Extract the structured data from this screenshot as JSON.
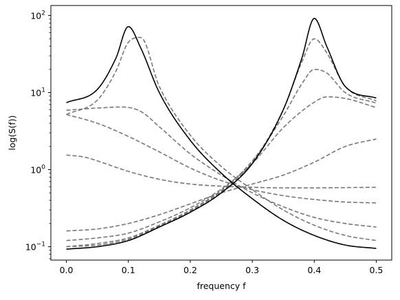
{
  "chart_data": {
    "type": "line",
    "xlabel": "frequency f",
    "ylabel": "log(S(f))",
    "xlim": [
      -0.025,
      0.525
    ],
    "ylim": [
      0.067,
      135
    ],
    "yscale": "log",
    "grid": false,
    "x_ticks": [
      0.0,
      0.1,
      0.2,
      0.3,
      0.4,
      0.5
    ],
    "x_tick_labels": [
      "0.0",
      "0.1",
      "0.2",
      "0.3",
      "0.4",
      "0.5"
    ],
    "y_ticks": [
      0.1,
      1,
      10,
      100
    ],
    "y_tick_labels": [
      {
        "base": "10",
        "exp": "−1"
      },
      {
        "base": "10",
        "exp": "0"
      },
      {
        "base": "10",
        "exp": "1"
      },
      {
        "base": "10",
        "exp": "2"
      }
    ],
    "series": [
      {
        "style": "solid",
        "color": "#000000",
        "x": [
          0.0,
          0.05,
          0.08,
          0.1,
          0.12,
          0.15,
          0.2,
          0.25,
          0.3,
          0.35,
          0.4,
          0.45,
          0.5
        ],
        "y": [
          7.4,
          11,
          28,
          72,
          38,
          10,
          2.4,
          0.9,
          0.42,
          0.22,
          0.14,
          0.105,
          0.095
        ]
      },
      {
        "style": "solid",
        "color": "#000000",
        "x": [
          0.0,
          0.05,
          0.1,
          0.15,
          0.2,
          0.25,
          0.3,
          0.35,
          0.38,
          0.4,
          0.42,
          0.45,
          0.5
        ],
        "y": [
          0.093,
          0.1,
          0.12,
          0.18,
          0.28,
          0.5,
          1.2,
          6,
          28,
          92,
          40,
          12,
          8.5
        ]
      },
      {
        "style": "dashed",
        "color": "#777777",
        "x": [
          0.0,
          0.05,
          0.08,
          0.1,
          0.12,
          0.15,
          0.2,
          0.25,
          0.3,
          0.35,
          0.4,
          0.45,
          0.5
        ],
        "y": [
          5.2,
          8,
          19,
          45,
          52,
          12,
          2.8,
          1.1,
          0.55,
          0.3,
          0.19,
          0.14,
          0.12
        ]
      },
      {
        "style": "dashed",
        "color": "#777777",
        "x": [
          0.0,
          0.05,
          0.09,
          0.12,
          0.15,
          0.2,
          0.25,
          0.3,
          0.35,
          0.4,
          0.45,
          0.5
        ],
        "y": [
          5.9,
          6.3,
          6.5,
          5.7,
          3.6,
          1.6,
          0.85,
          0.5,
          0.33,
          0.24,
          0.2,
          0.18
        ]
      },
      {
        "style": "dashed",
        "color": "#777777",
        "x": [
          0.0,
          0.05,
          0.1,
          0.15,
          0.2,
          0.25,
          0.3,
          0.35,
          0.4,
          0.45,
          0.5
        ],
        "y": [
          5.2,
          4.0,
          2.7,
          1.7,
          1.05,
          0.72,
          0.55,
          0.46,
          0.41,
          0.38,
          0.37
        ]
      },
      {
        "style": "dashed",
        "color": "#777777",
        "x": [
          0.0,
          0.03,
          0.05,
          0.1,
          0.15,
          0.2,
          0.25,
          0.3,
          0.35,
          0.4,
          0.45,
          0.5
        ],
        "y": [
          1.55,
          1.45,
          1.3,
          0.95,
          0.75,
          0.65,
          0.61,
          0.59,
          0.58,
          0.58,
          0.585,
          0.59
        ]
      },
      {
        "style": "dashed",
        "color": "#777777",
        "x": [
          0.0,
          0.05,
          0.1,
          0.15,
          0.2,
          0.25,
          0.3,
          0.35,
          0.4,
          0.45,
          0.5
        ],
        "y": [
          0.16,
          0.17,
          0.2,
          0.26,
          0.36,
          0.5,
          0.65,
          0.85,
          1.25,
          2.0,
          2.5
        ]
      },
      {
        "style": "dashed",
        "color": "#777777",
        "x": [
          0.0,
          0.05,
          0.1,
          0.15,
          0.2,
          0.25,
          0.3,
          0.35,
          0.4,
          0.42,
          0.45,
          0.5
        ],
        "y": [
          0.12,
          0.13,
          0.15,
          0.21,
          0.32,
          0.56,
          1.2,
          3.5,
          7.5,
          8.8,
          8.4,
          6.4
        ]
      },
      {
        "style": "dashed",
        "color": "#777777",
        "x": [
          0.0,
          0.05,
          0.1,
          0.15,
          0.2,
          0.25,
          0.3,
          0.35,
          0.38,
          0.4,
          0.42,
          0.45,
          0.5
        ],
        "y": [
          0.1,
          0.11,
          0.13,
          0.19,
          0.3,
          0.54,
          1.3,
          5,
          13,
          20,
          18,
          10,
          7.3
        ]
      },
      {
        "style": "dashed",
        "color": "#777777",
        "x": [
          0.0,
          0.05,
          0.1,
          0.15,
          0.2,
          0.25,
          0.3,
          0.35,
          0.38,
          0.4,
          0.42,
          0.45,
          0.5
        ],
        "y": [
          0.1,
          0.105,
          0.125,
          0.185,
          0.29,
          0.52,
          1.25,
          6,
          25,
          50,
          33,
          12,
          7.8
        ]
      }
    ]
  }
}
